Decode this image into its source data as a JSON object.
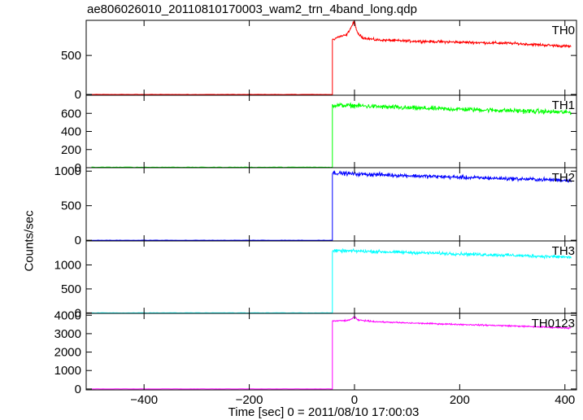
{
  "chart_data": {
    "type": "line",
    "title": "ae806026010_20110810170003_wam2_trn_4band_long.qdp",
    "xlabel": "Time [sec] 0 = 2011/08/10 17:00:03",
    "ylabel": "Counts/sec",
    "xlim": [
      -510,
      422
    ],
    "xticks": [
      -400,
      -200,
      0,
      200,
      400
    ],
    "xtick_labels": [
      "−400",
      "−200",
      "0",
      "200",
      "400"
    ],
    "trigger_time": -42,
    "end_time": 412,
    "panels": [
      {
        "name": "TH0",
        "color": "#ff0000",
        "ylim": [
          -10,
          950
        ],
        "yticks": [
          0,
          500
        ],
        "ytick_labels": [
          "0",
          "500"
        ],
        "pre_level": 0,
        "curve": [
          [
            -42,
            700
          ],
          [
            -30,
            740
          ],
          [
            -15,
            760
          ],
          [
            -5,
            880
          ],
          [
            0,
            940
          ],
          [
            5,
            790
          ],
          [
            15,
            730
          ],
          [
            40,
            700
          ],
          [
            100,
            685
          ],
          [
            200,
            670
          ],
          [
            300,
            655
          ],
          [
            412,
            615
          ]
        ],
        "noise": 18
      },
      {
        "name": "TH1",
        "color": "#00ff00",
        "ylim": [
          0,
          800
        ],
        "yticks": [
          0,
          200,
          400,
          600
        ],
        "ytick_labels": [
          "0",
          "200",
          "400",
          "600"
        ],
        "pre_level": 5,
        "curve": [
          [
            -42,
            690
          ],
          [
            0,
            685
          ],
          [
            100,
            660
          ],
          [
            200,
            645
          ],
          [
            300,
            630
          ],
          [
            412,
            610
          ]
        ],
        "noise": 28
      },
      {
        "name": "TH2",
        "color": "#0000ff",
        "ylim": [
          -10,
          1050
        ],
        "yticks": [
          0,
          500,
          1000
        ],
        "ytick_labels": [
          "0",
          "500",
          "1000"
        ],
        "pre_level": 0,
        "curve": [
          [
            -42,
            975
          ],
          [
            0,
            960
          ],
          [
            100,
            935
          ],
          [
            200,
            910
          ],
          [
            300,
            890
          ],
          [
            412,
            865
          ]
        ],
        "noise": 30
      },
      {
        "name": "TH3",
        "color": "#00ffff",
        "ylim": [
          -10,
          1500
        ],
        "yticks": [
          0,
          500,
          1000
        ],
        "ytick_labels": [
          "0",
          "500",
          "1000"
        ],
        "pre_level": 0,
        "curve": [
          [
            -42,
            1290
          ],
          [
            0,
            1290
          ],
          [
            100,
            1260
          ],
          [
            200,
            1230
          ],
          [
            300,
            1200
          ],
          [
            412,
            1160
          ]
        ],
        "noise": 35
      },
      {
        "name": "TH0123",
        "color": "#ff00ff",
        "ylim": [
          -50,
          4100
        ],
        "yticks": [
          0,
          1000,
          2000,
          3000,
          4000
        ],
        "ytick_labels": [
          "0",
          "1000",
          "2000",
          "3000",
          "4000"
        ],
        "pre_level": 0,
        "curve": [
          [
            -42,
            3680
          ],
          [
            -10,
            3720
          ],
          [
            0,
            3920
          ],
          [
            6,
            3740
          ],
          [
            40,
            3650
          ],
          [
            100,
            3580
          ],
          [
            200,
            3500
          ],
          [
            300,
            3420
          ],
          [
            412,
            3300
          ]
        ],
        "noise": 40
      }
    ]
  }
}
